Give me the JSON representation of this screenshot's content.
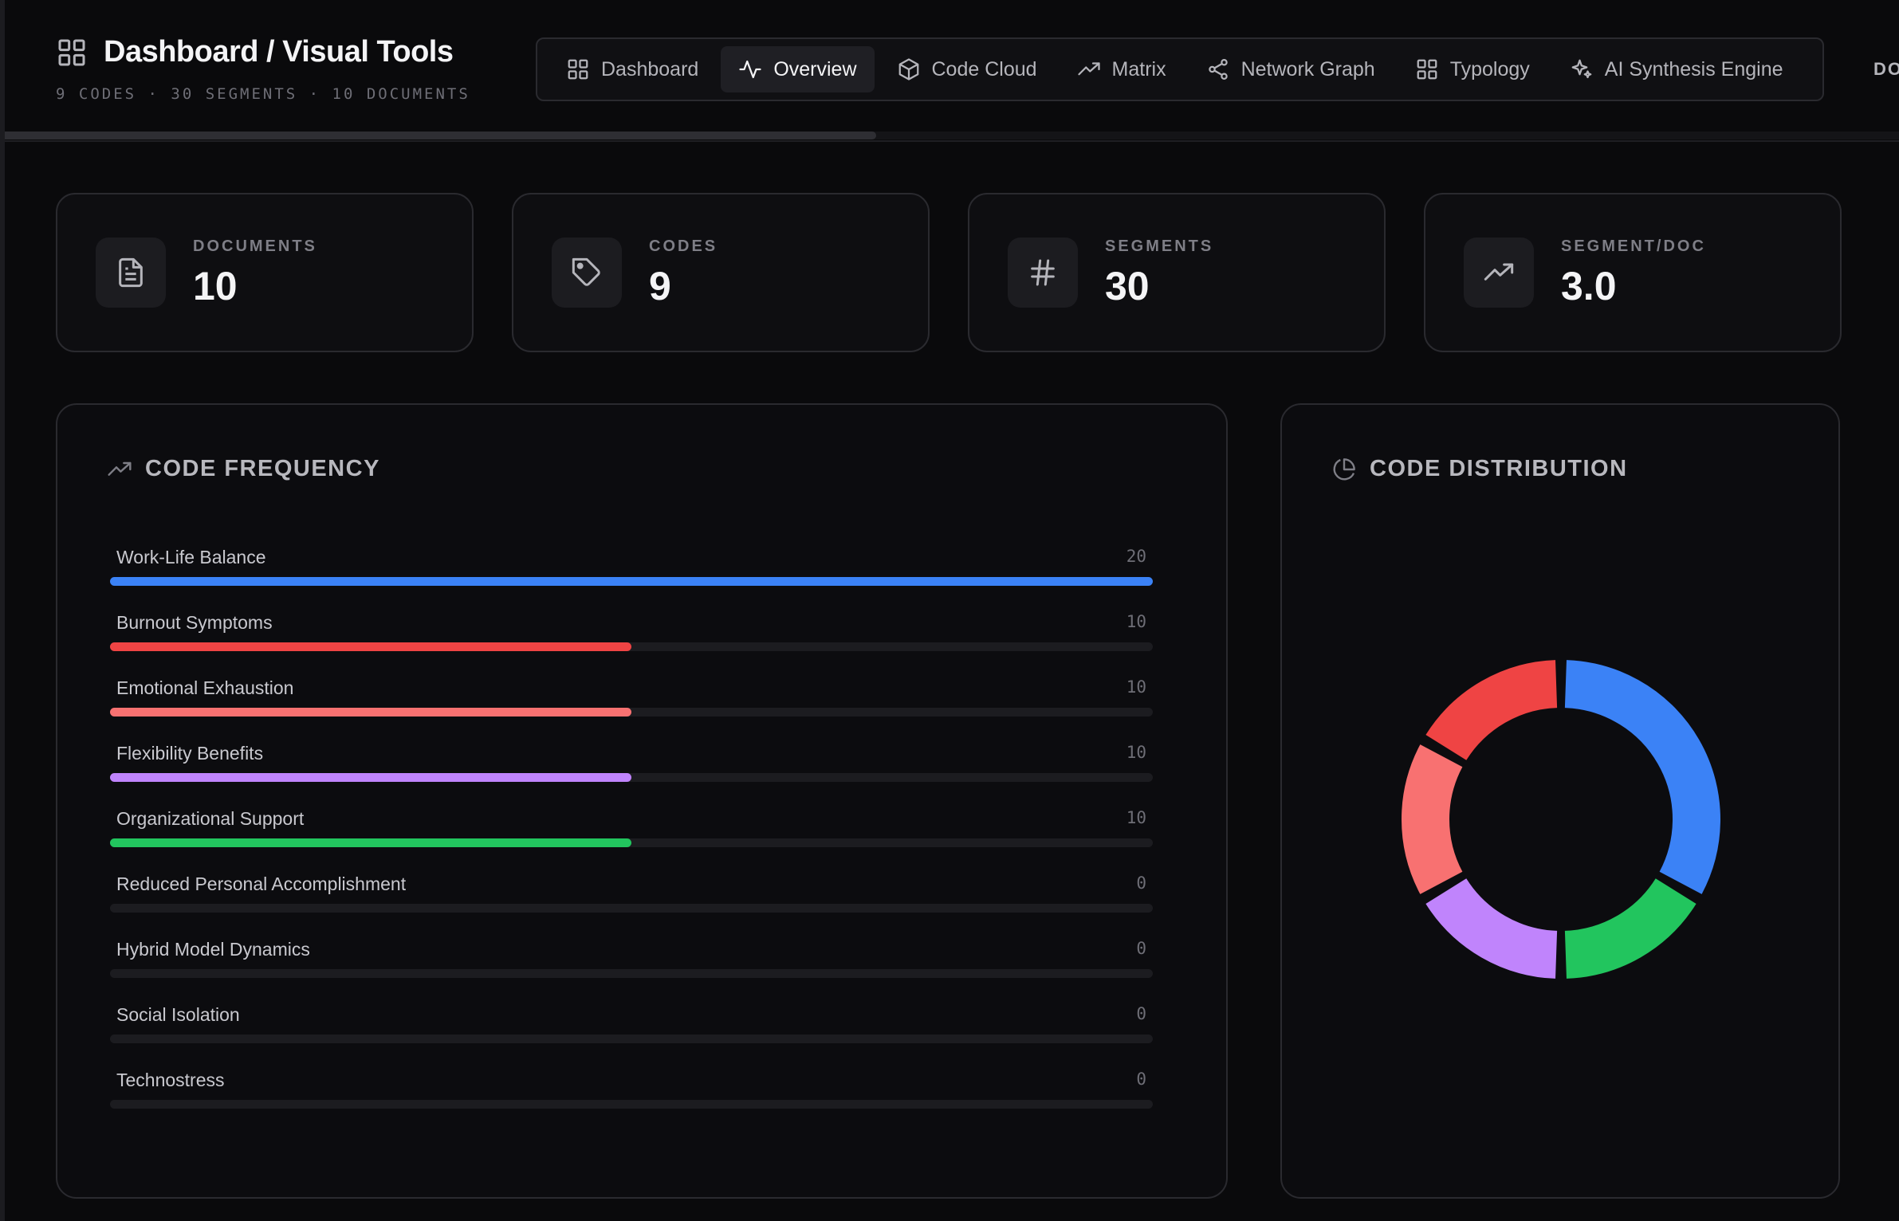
{
  "header": {
    "title": "Dashboard / Visual Tools",
    "subtitle": "9 CODES · 30 SEGMENTS · 10 DOCUMENTS",
    "more_label": "DOCUMENTS"
  },
  "tabs": [
    {
      "label": "Dashboard",
      "icon": "grid-icon",
      "active": false
    },
    {
      "label": "Overview",
      "icon": "activity-icon",
      "active": true
    },
    {
      "label": "Code Cloud",
      "icon": "cube-icon",
      "active": false
    },
    {
      "label": "Matrix",
      "icon": "trending-up-icon",
      "active": false
    },
    {
      "label": "Network Graph",
      "icon": "share-nodes-icon",
      "active": false
    },
    {
      "label": "Typology",
      "icon": "grid-icon",
      "active": false
    },
    {
      "label": "AI Synthesis Engine",
      "icon": "sparkles-icon",
      "active": false
    }
  ],
  "scroll_progress": 0.46,
  "stats": [
    {
      "label": "DOCUMENTS",
      "value": "10",
      "icon": "document-icon"
    },
    {
      "label": "CODES",
      "value": "9",
      "icon": "tag-icon"
    },
    {
      "label": "SEGMENTS",
      "value": "30",
      "icon": "hash-icon"
    },
    {
      "label": "SEGMENT/DOC",
      "value": "3.0",
      "icon": "trending-up-icon"
    }
  ],
  "frequency_panel": {
    "title": "CODE FREQUENCY"
  },
  "distribution_panel": {
    "title": "CODE DISTRIBUTION"
  },
  "chart_data": [
    {
      "type": "bar",
      "orientation": "horizontal",
      "categories": [
        "Work-Life Balance",
        "Burnout Symptoms",
        "Emotional Exhaustion",
        "Flexibility Benefits",
        "Organizational Support",
        "Reduced Personal Accomplishment",
        "Hybrid Model Dynamics",
        "Social Isolation",
        "Technostress"
      ],
      "values": [
        20,
        10,
        10,
        10,
        10,
        0,
        0,
        0,
        0
      ],
      "colors": [
        "#3b82f6",
        "#ef4444",
        "#f87171",
        "#c084fc",
        "#22c55e",
        "#3b82f6",
        "#3b82f6",
        "#3b82f6",
        "#3b82f6"
      ],
      "xlim": [
        0,
        20
      ]
    },
    {
      "type": "pie",
      "variant": "donut",
      "categories": [
        "Work-Life Balance",
        "Organizational Support",
        "Flexibility Benefits",
        "Emotional Exhaustion",
        "Burnout Symptoms"
      ],
      "values": [
        20,
        10,
        10,
        10,
        10
      ],
      "colors": [
        "#3b82f6",
        "#22c55e",
        "#c084fc",
        "#f87171",
        "#ef4444"
      ]
    }
  ]
}
